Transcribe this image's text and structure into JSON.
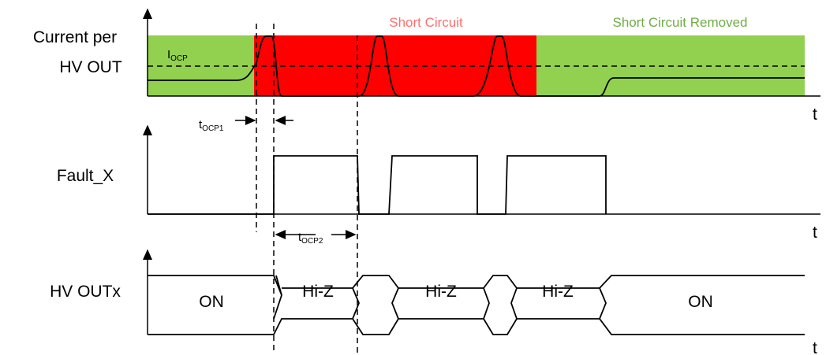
{
  "current_label": {
    "line1": "Current per",
    "line2": "HV OUT"
  },
  "iocp": {
    "main": "I",
    "sub": "OCP"
  },
  "short_circuit": "Short Circuit",
  "short_circuit_removed": "Short Circuit Removed",
  "time_axes": [
    "t",
    "t",
    "t"
  ],
  "tocp1": {
    "main": "t",
    "sub": "OCP1"
  },
  "fault_label": "Fault_X",
  "tocp2": {
    "main": "t",
    "sub": "OCP2"
  },
  "hvout_label": "HV OUTx",
  "states": [
    "ON",
    "Hi-Z",
    "Hi-Z",
    "Hi-Z",
    "ON"
  ]
}
